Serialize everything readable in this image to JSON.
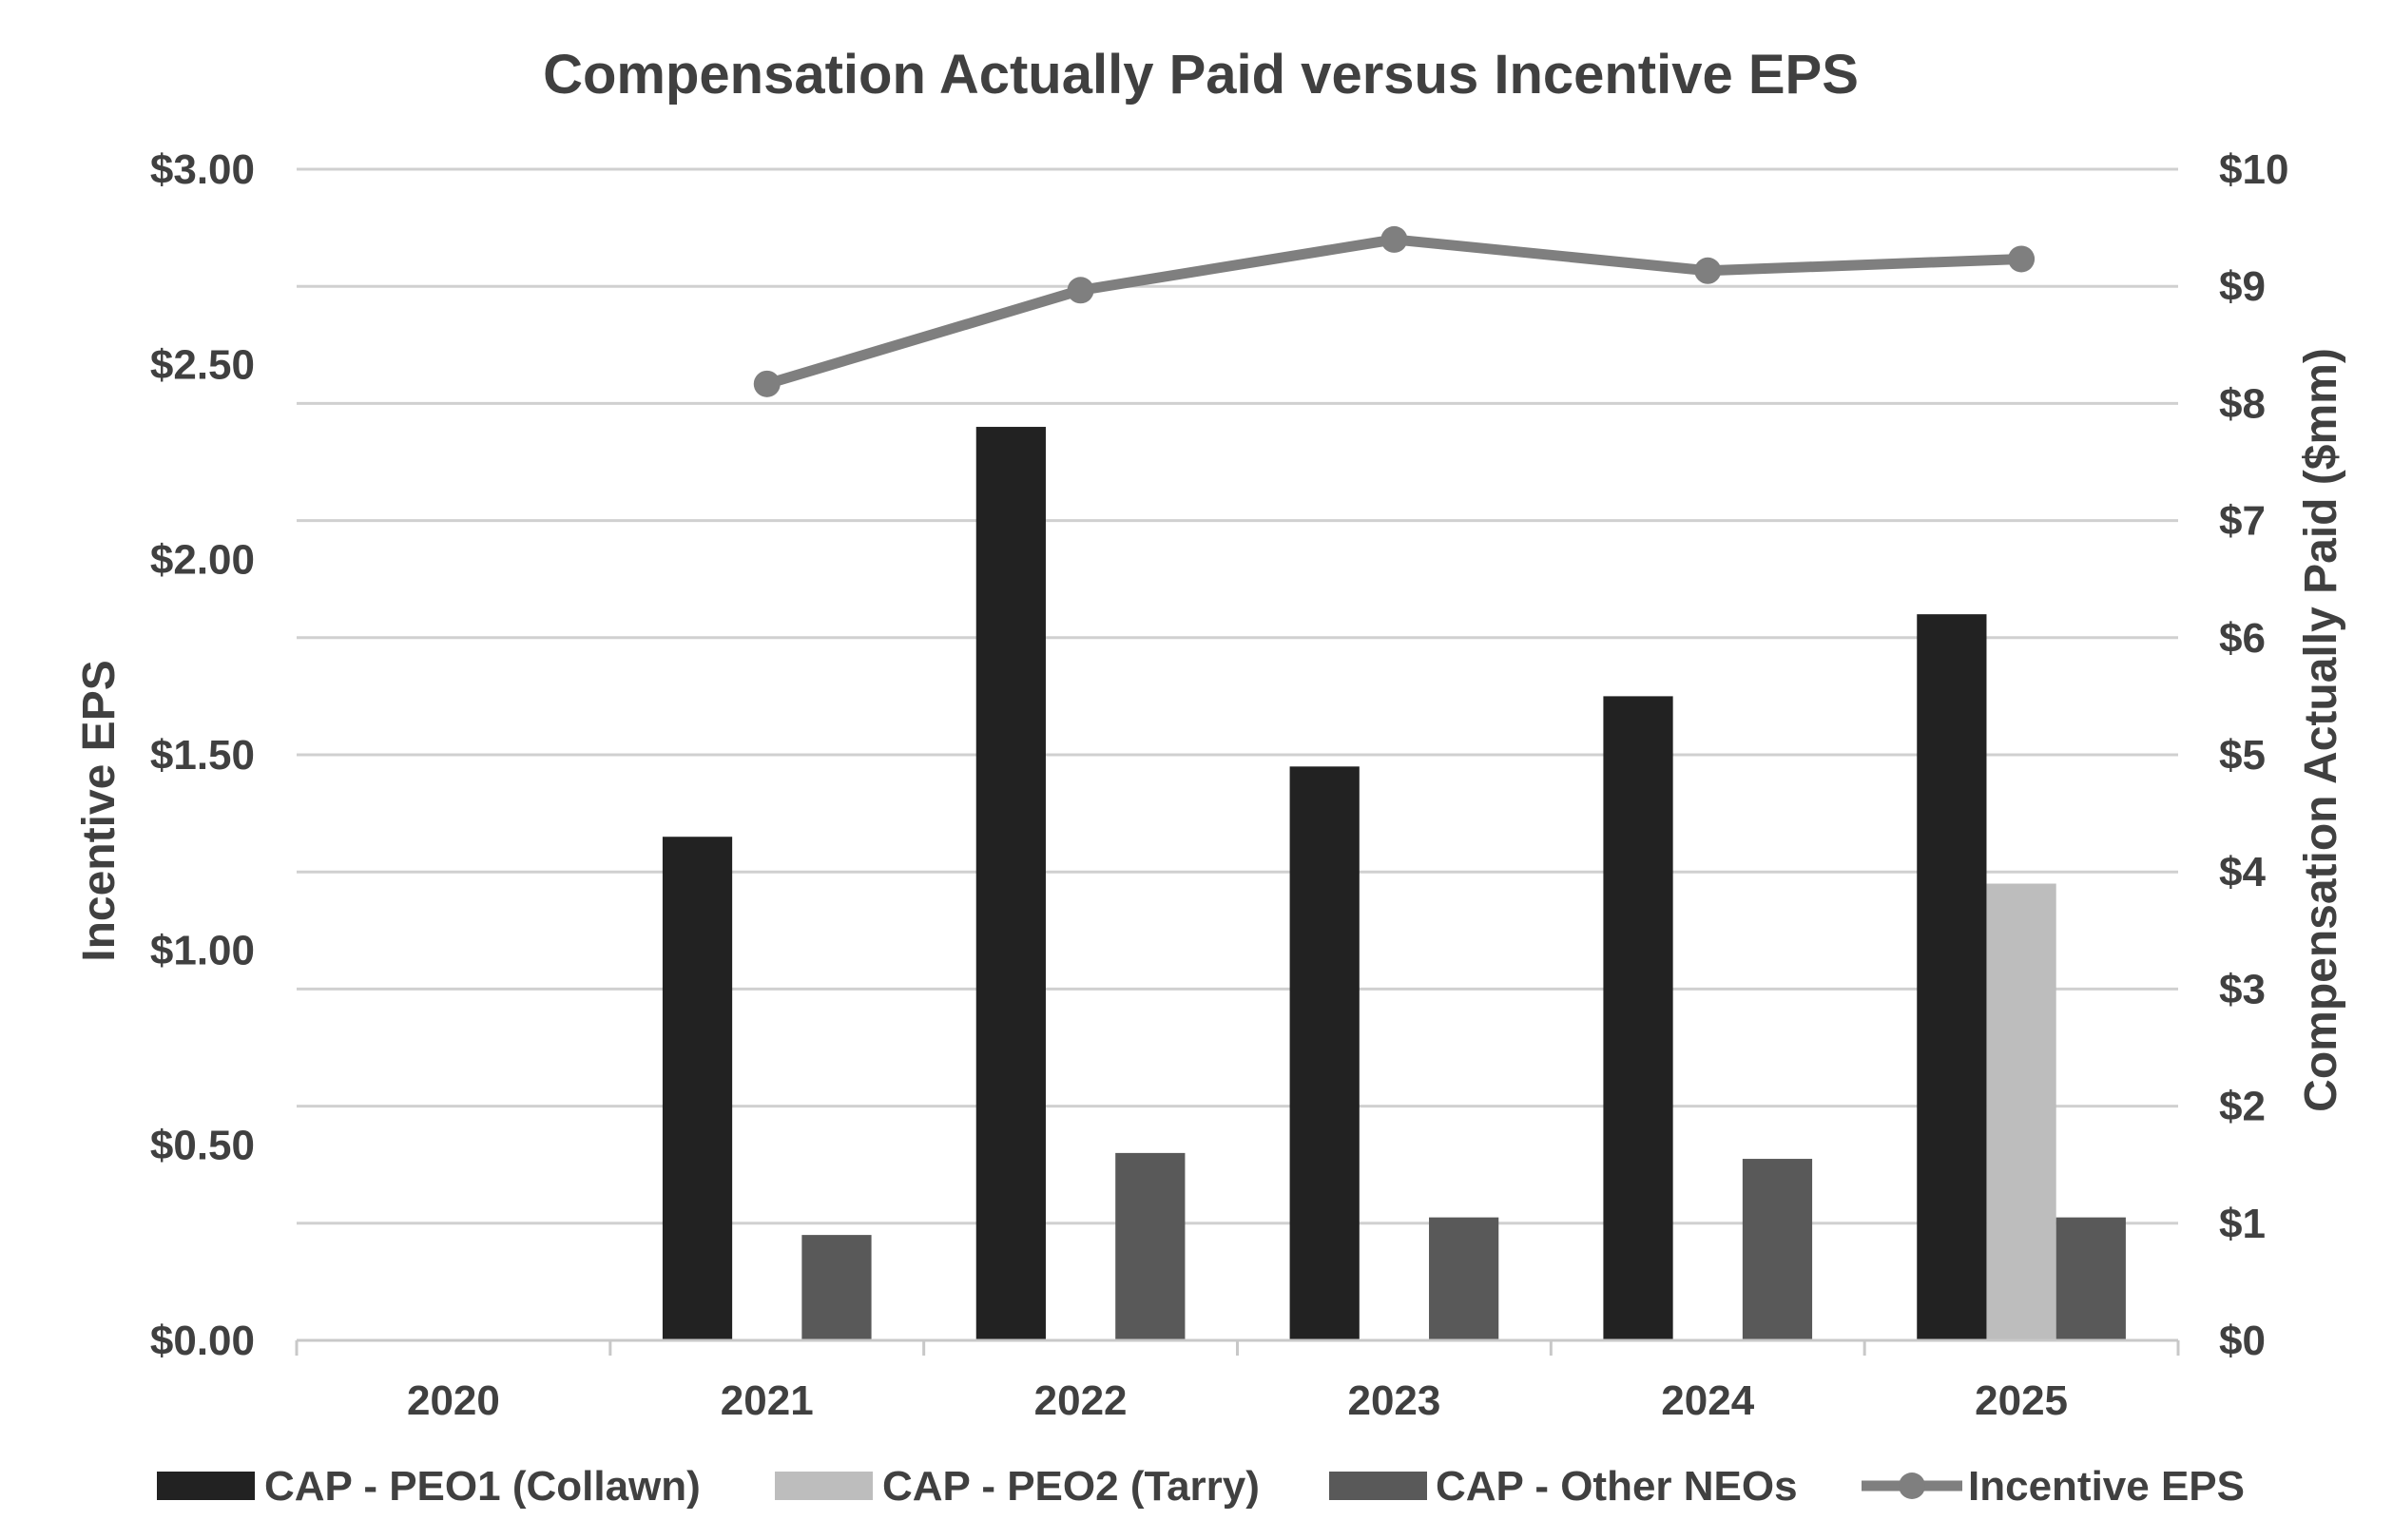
{
  "chart_data": {
    "type": "bar",
    "title": "Compensation Actually Paid versus Incentive EPS",
    "categories": [
      "2020",
      "2021",
      "2022",
      "2023",
      "2024",
      "2025"
    ],
    "ylabel_left": "Incentive EPS",
    "ylabel_right": "Compensation Actually Paid ($mm)",
    "ylim_left": [
      0,
      3
    ],
    "ylim_right": [
      0,
      10
    ],
    "yticks_left": [
      "$0.00",
      "$0.50",
      "$1.00",
      "$1.50",
      "$2.00",
      "$2.50",
      "$3.00"
    ],
    "yticks_right": [
      "$0",
      "$1",
      "$2",
      "$3",
      "$4",
      "$5",
      "$6",
      "$7",
      "$8",
      "$9",
      "$10"
    ],
    "grid": true,
    "legend_position": "bottom",
    "series": [
      {
        "name": "CAP - PEO1 (Collawn)",
        "type": "bar",
        "axis": "right",
        "color": "#222222",
        "values": [
          null,
          4.3,
          7.8,
          4.9,
          5.5,
          6.2
        ]
      },
      {
        "name": "CAP - PEO2 (Tarry)",
        "type": "bar",
        "axis": "right",
        "color": "#bdbdbd",
        "values": [
          null,
          null,
          null,
          null,
          null,
          3.9
        ]
      },
      {
        "name": "CAP - Other NEOs",
        "type": "bar",
        "axis": "right",
        "color": "#595959",
        "values": [
          null,
          0.9,
          1.6,
          1.05,
          1.55,
          1.05
        ]
      },
      {
        "name": "Incentive EPS",
        "type": "line",
        "axis": "left",
        "color": "#7f7f7f",
        "values": [
          null,
          2.45,
          2.69,
          2.82,
          2.74,
          2.77
        ]
      }
    ]
  }
}
